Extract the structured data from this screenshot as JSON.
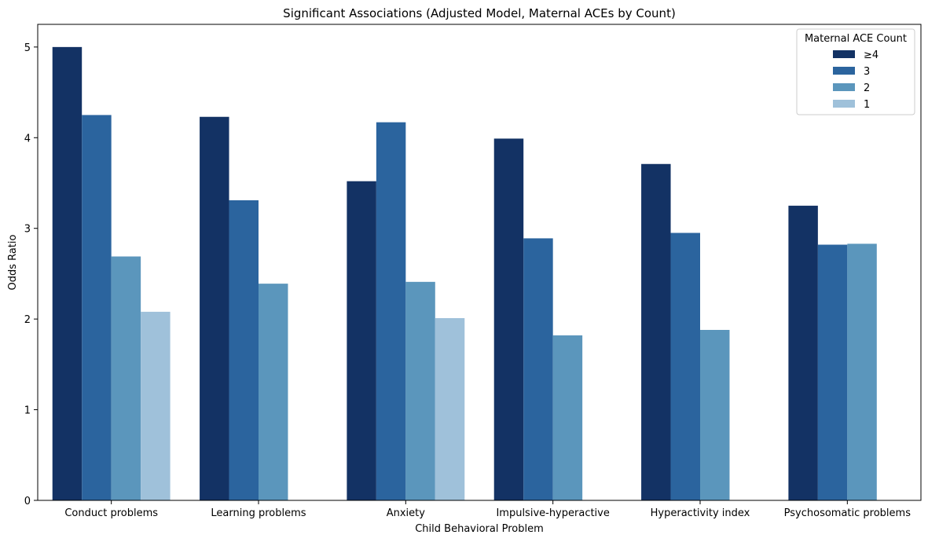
{
  "chart_data": {
    "type": "bar",
    "title": "Significant Associations (Adjusted Model, Maternal ACEs by Count)",
    "xlabel": "Child Behavioral Problem",
    "ylabel": "Odds Ratio",
    "ylim": [
      0,
      5.25
    ],
    "yticks": [
      0,
      1,
      2,
      3,
      4,
      5
    ],
    "grid": false,
    "legend_title": "Maternal ACE Count",
    "legend_position": "top-right",
    "categories": [
      "Conduct problems",
      "Learning problems",
      "Anxiety",
      "Impulsive-hyperactive",
      "Hyperactivity index",
      "Psychosomatic problems"
    ],
    "series": [
      {
        "name": "≥4",
        "color": "#133264",
        "values": [
          5.0,
          4.23,
          3.52,
          3.99,
          3.71,
          3.25
        ]
      },
      {
        "name": "3",
        "color": "#2b649e",
        "values": [
          4.25,
          3.31,
          4.17,
          2.89,
          2.95,
          2.82
        ]
      },
      {
        "name": "2",
        "color": "#5b96bc",
        "values": [
          2.69,
          2.39,
          2.41,
          1.82,
          1.88,
          2.83
        ]
      },
      {
        "name": "1",
        "color": "#9fc1da",
        "values": [
          2.08,
          null,
          2.01,
          null,
          null,
          null
        ]
      }
    ]
  }
}
